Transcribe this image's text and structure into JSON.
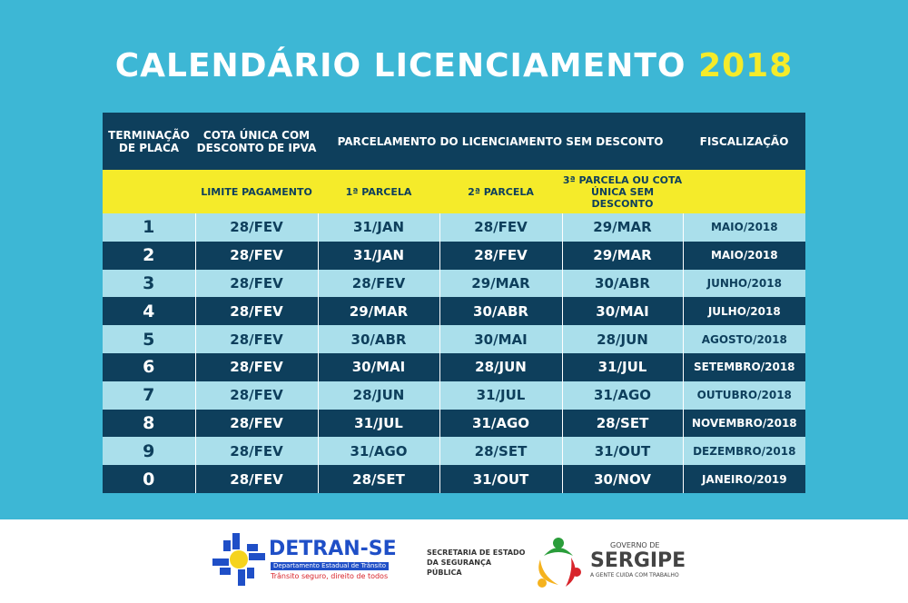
{
  "title": {
    "main": "CALENDÁRIO LICENCIAMENTO",
    "year": "2018"
  },
  "header": {
    "terminacao": "TERMINAÇÃO DE PLACA",
    "cota": "COTA ÚNICA COM DESCONTO DE IPVA",
    "parcelamento": "PARCELAMENTO DO LICENCIAMENTO SEM DESCONTO",
    "fiscalizacao": "FISCALIZAÇÃO"
  },
  "subheader": {
    "limite": "LIMITE PAGAMENTO",
    "p1": "1ª PARCELA",
    "p2": "2ª PARCELA",
    "p3": "3ª PARCELA OU COTA ÚNICA SEM DESCONTO"
  },
  "rows": [
    [
      "1",
      "28/FEV",
      "31/JAN",
      "28/FEV",
      "29/MAR",
      "MAIO/2018"
    ],
    [
      "2",
      "28/FEV",
      "31/JAN",
      "28/FEV",
      "29/MAR",
      "MAIO/2018"
    ],
    [
      "3",
      "28/FEV",
      "28/FEV",
      "29/MAR",
      "30/ABR",
      "JUNHO/2018"
    ],
    [
      "4",
      "28/FEV",
      "29/MAR",
      "30/ABR",
      "30/MAI",
      "JULHO/2018"
    ],
    [
      "5",
      "28/FEV",
      "30/ABR",
      "30/MAI",
      "28/JUN",
      "AGOSTO/2018"
    ],
    [
      "6",
      "28/FEV",
      "30/MAI",
      "28/JUN",
      "31/JUL",
      "SETEMBRO/2018"
    ],
    [
      "7",
      "28/FEV",
      "28/JUN",
      "31/JUL",
      "31/AGO",
      "OUTUBRO/2018"
    ],
    [
      "8",
      "28/FEV",
      "31/JUL",
      "31/AGO",
      "28/SET",
      "NOVEMBRO/2018"
    ],
    [
      "9",
      "28/FEV",
      "31/AGO",
      "28/SET",
      "31/OUT",
      "DEZEMBRO/2018"
    ],
    [
      "0",
      "28/FEV",
      "28/SET",
      "31/OUT",
      "30/NOV",
      "JANEIRO/2019"
    ]
  ],
  "footer": {
    "detran_name": "DETRAN-SE",
    "detran_sub": "Departamento Estadual de Trânsito",
    "detran_slogan": "Trânsito seguro, direito de todos",
    "ssp": "SECRETARIA DE ESTADO DA SEGURANÇA PÚBLICA",
    "gov_top": "GOVERNO DE",
    "gov_name": "SERGIPE",
    "gov_slogan": "A GENTE CUIDA COM TRABALHO"
  },
  "colors": {
    "background": "#3db7d5",
    "dark": "#0e3f5c",
    "light": "#aadfeb",
    "yellow": "#f5eb2a"
  }
}
